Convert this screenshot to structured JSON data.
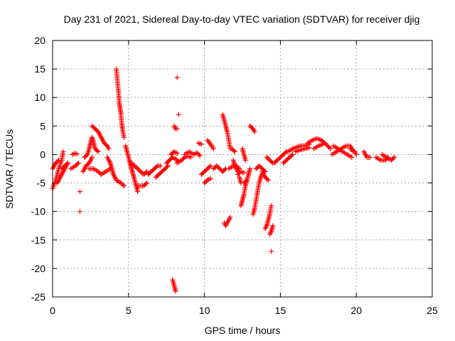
{
  "chart_data": {
    "type": "scatter",
    "title": "Day 231 of 2021, Sidereal Day-to-day VTEC variation (SDTVAR) for receiver djig",
    "xlabel": "GPS time / hours",
    "ylabel": "SDTVAR / TECUs",
    "xlim": [
      0,
      25
    ],
    "ylim": [
      -25,
      20
    ],
    "xticks": [
      0,
      5,
      10,
      15,
      20,
      25
    ],
    "yticks": [
      -25,
      -20,
      -15,
      -10,
      -5,
      0,
      5,
      10,
      15,
      20
    ],
    "grid": true,
    "marker": "plus",
    "color": "#ff0000",
    "arcs": [
      [
        [
          0.0,
          -6.0
        ],
        [
          0.2,
          -4.5
        ],
        [
          0.4,
          -2.5
        ],
        [
          0.6,
          -1.0
        ],
        [
          0.7,
          0.5
        ]
      ],
      [
        [
          0.0,
          -2.5
        ],
        [
          0.2,
          -1.5
        ],
        [
          0.4,
          -1.0
        ]
      ],
      [
        [
          0.3,
          -5.0
        ],
        [
          0.5,
          -4.0
        ],
        [
          0.7,
          -3.0
        ],
        [
          0.9,
          -2.0
        ],
        [
          1.0,
          -1.5
        ]
      ],
      [
        [
          0.6,
          -2.5
        ],
        [
          0.8,
          -2.0
        ],
        [
          1.0,
          -1.5
        ]
      ],
      [
        [
          1.2,
          -2.5
        ],
        [
          1.5,
          -2.0
        ],
        [
          1.7,
          -1.5
        ]
      ],
      [
        [
          1.3,
          0.0
        ],
        [
          1.5,
          0.2
        ],
        [
          1.6,
          0.1
        ]
      ],
      [
        [
          1.8,
          -6.5
        ]
      ],
      [
        [
          1.8,
          -10.0
        ]
      ],
      [
        [
          2.0,
          -3.0
        ],
        [
          2.2,
          -2.0
        ],
        [
          2.4,
          -1.5
        ],
        [
          2.6,
          -0.5
        ]
      ],
      [
        [
          2.1,
          -0.5
        ],
        [
          2.3,
          0.0
        ],
        [
          2.4,
          1.0
        ],
        [
          2.5,
          2.0
        ],
        [
          2.6,
          3.0
        ],
        [
          2.7,
          2.0
        ],
        [
          2.8,
          1.0
        ],
        [
          3.0,
          0.5
        ]
      ],
      [
        [
          2.4,
          -2.5
        ],
        [
          2.7,
          -2.5
        ],
        [
          3.0,
          -3.0
        ],
        [
          3.2,
          -3.5
        ],
        [
          3.5,
          -3.0
        ],
        [
          3.8,
          -2.5
        ]
      ],
      [
        [
          2.6,
          5.0
        ],
        [
          2.8,
          4.5
        ],
        [
          3.0,
          4.0
        ],
        [
          3.2,
          3.0
        ],
        [
          3.4,
          2.0
        ],
        [
          3.6,
          1.5
        ],
        [
          3.7,
          1.0
        ]
      ],
      [
        [
          3.6,
          -0.5
        ],
        [
          3.8,
          -1.5
        ],
        [
          3.9,
          -2.5
        ],
        [
          4.0,
          -3.5
        ],
        [
          4.2,
          -4.5
        ],
        [
          4.5,
          -5.0
        ],
        [
          4.7,
          -5.5
        ]
      ],
      [
        [
          4.2,
          15.0
        ],
        [
          4.25,
          13.5
        ],
        [
          4.3,
          12.0
        ],
        [
          4.35,
          10.5
        ],
        [
          4.4,
          9.0
        ],
        [
          4.45,
          8.0
        ],
        [
          4.5,
          7.0
        ],
        [
          4.55,
          5.5
        ],
        [
          4.6,
          4.5
        ],
        [
          4.7,
          3.0
        ]
      ],
      [
        [
          4.8,
          1.5
        ],
        [
          4.9,
          0.5
        ],
        [
          5.0,
          -0.5
        ],
        [
          5.1,
          -1.5
        ],
        [
          5.2,
          -2.5
        ],
        [
          5.3,
          -3.5
        ],
        [
          5.4,
          -4.5
        ],
        [
          5.5,
          -5.5
        ],
        [
          5.6,
          -6.5
        ]
      ],
      [
        [
          5.2,
          -1.5
        ],
        [
          5.4,
          -2.0
        ],
        [
          5.6,
          -2.5
        ],
        [
          5.8,
          -3.0
        ],
        [
          6.0,
          -3.5
        ],
        [
          6.2,
          -3.0
        ]
      ],
      [
        [
          5.6,
          -5.5
        ],
        [
          5.8,
          -5.5
        ],
        [
          6.0,
          -5.5
        ],
        [
          6.2,
          -5.0
        ]
      ],
      [
        [
          6.3,
          -3.5
        ],
        [
          6.5,
          -3.0
        ],
        [
          6.7,
          -2.5
        ],
        [
          6.9,
          -2.0
        ],
        [
          7.1,
          -2.0
        ]
      ],
      [
        [
          6.8,
          -4.0
        ],
        [
          7.0,
          -3.5
        ],
        [
          7.2,
          -3.0
        ],
        [
          7.4,
          -2.5
        ],
        [
          7.6,
          -2.0
        ]
      ],
      [
        [
          7.5,
          -1.5
        ],
        [
          7.7,
          -1.0
        ],
        [
          7.9,
          -0.5
        ],
        [
          8.1,
          -0.8
        ],
        [
          8.3,
          -1.3
        ]
      ],
      [
        [
          7.8,
          0.0
        ],
        [
          8.0,
          0.5
        ],
        [
          8.2,
          0.2
        ]
      ],
      [
        [
          7.9,
          -22.0
        ],
        [
          8.0,
          -23.0
        ],
        [
          8.1,
          -24.0
        ]
      ],
      [
        [
          8.0,
          5.0
        ],
        [
          8.1,
          4.5
        ],
        [
          8.2,
          4.5
        ]
      ],
      [
        [
          8.2,
          13.5
        ]
      ],
      [
        [
          8.3,
          7.0
        ]
      ],
      [
        [
          8.2,
          -1.5
        ],
        [
          8.5,
          -1.0
        ],
        [
          8.7,
          -0.5
        ],
        [
          8.9,
          -0.3
        ],
        [
          9.1,
          -0.5
        ]
      ],
      [
        [
          8.7,
          0.0
        ],
        [
          9.0,
          0.5
        ],
        [
          9.3,
          0.0
        ],
        [
          9.5,
          0.3
        ],
        [
          9.7,
          -0.2
        ]
      ],
      [
        [
          9.6,
          2.0
        ],
        [
          9.8,
          1.8
        ]
      ],
      [
        [
          9.8,
          -3.5
        ],
        [
          10.0,
          -3.0
        ],
        [
          10.2,
          -2.5
        ],
        [
          10.4,
          -2.0
        ]
      ],
      [
        [
          10.0,
          -5.0
        ],
        [
          10.2,
          -4.5
        ],
        [
          10.4,
          -4.2
        ]
      ],
      [
        [
          10.2,
          2.5
        ],
        [
          10.4,
          1.8
        ],
        [
          10.6,
          1.0
        ]
      ],
      [
        [
          10.6,
          -2.5
        ],
        [
          10.8,
          -2.0
        ],
        [
          11.0,
          -2.5
        ],
        [
          11.2,
          -3.0
        ],
        [
          11.4,
          -2.5
        ]
      ],
      [
        [
          11.2,
          7.0
        ],
        [
          11.3,
          6.0
        ],
        [
          11.4,
          5.0
        ],
        [
          11.5,
          4.0
        ],
        [
          11.6,
          2.5
        ],
        [
          11.7,
          1.0
        ]
      ],
      [
        [
          11.3,
          -12.0
        ],
        [
          11.4,
          -12.5
        ],
        [
          11.5,
          -12.0
        ],
        [
          11.6,
          -11.5
        ],
        [
          11.7,
          -11.0
        ]
      ],
      [
        [
          11.6,
          -2.5
        ],
        [
          11.9,
          -2.0
        ],
        [
          12.1,
          -2.0
        ],
        [
          12.3,
          -2.5
        ]
      ],
      [
        [
          11.9,
          -1.0
        ],
        [
          12.0,
          -2.0
        ],
        [
          12.2,
          -3.0
        ]
      ],
      [
        [
          11.8,
          1.0
        ],
        [
          12.0,
          0.5
        ]
      ],
      [
        [
          12.2,
          -3.5
        ],
        [
          12.4,
          -3.0
        ],
        [
          12.6,
          -3.2
        ]
      ],
      [
        [
          12.3,
          -4.0
        ],
        [
          12.4,
          -5.0
        ]
      ],
      [
        [
          12.4,
          -9.0
        ],
        [
          12.5,
          -8.0
        ],
        [
          12.6,
          -7.0
        ],
        [
          12.7,
          -5.5
        ],
        [
          12.8,
          -4.5
        ],
        [
          12.9,
          -3.5
        ],
        [
          13.0,
          -2.5
        ]
      ],
      [
        [
          12.5,
          1.0
        ],
        [
          12.6,
          0.0
        ],
        [
          12.7,
          -1.0
        ]
      ],
      [
        [
          12.6,
          -5.0
        ],
        [
          12.8,
          -4.5
        ]
      ],
      [
        [
          13.0,
          5.0
        ],
        [
          13.2,
          4.5
        ],
        [
          13.3,
          4.0
        ]
      ],
      [
        [
          13.2,
          -10.5
        ],
        [
          13.3,
          -9.5
        ],
        [
          13.4,
          -8.0
        ],
        [
          13.5,
          -6.5
        ],
        [
          13.6,
          -5.0
        ],
        [
          13.7,
          -4.0
        ],
        [
          13.9,
          -3.0
        ]
      ],
      [
        [
          13.4,
          -2.5
        ],
        [
          13.6,
          -2.0
        ],
        [
          13.8,
          -2.5
        ],
        [
          14.0,
          -3.0
        ]
      ],
      [
        [
          13.8,
          -3.0
        ],
        [
          14.0,
          -4.0
        ],
        [
          14.2,
          -4.5
        ]
      ],
      [
        [
          14.0,
          -13.0
        ],
        [
          14.1,
          -12.5
        ],
        [
          14.2,
          -11.5
        ],
        [
          14.3,
          -10.5
        ],
        [
          14.4,
          -9.0
        ]
      ],
      [
        [
          14.3,
          -14.0
        ],
        [
          14.4,
          -13.5
        ],
        [
          14.5,
          -12.5
        ]
      ],
      [
        [
          14.4,
          -17.0
        ]
      ],
      [
        [
          14.1,
          -0.5
        ],
        [
          14.3,
          -1.0
        ],
        [
          14.5,
          -1.5
        ]
      ],
      [
        [
          14.6,
          -1.5
        ],
        [
          14.8,
          -1.0
        ],
        [
          15.0,
          -0.5
        ],
        [
          15.2,
          0.0
        ],
        [
          15.4,
          0.5
        ]
      ],
      [
        [
          15.2,
          -1.5
        ],
        [
          15.4,
          -1.0
        ],
        [
          15.6,
          -0.5
        ],
        [
          15.8,
          0.0
        ]
      ],
      [
        [
          15.5,
          0.5
        ],
        [
          15.8,
          1.0
        ],
        [
          16.0,
          1.2
        ],
        [
          16.3,
          1.5
        ],
        [
          16.6,
          1.5
        ],
        [
          16.9,
          1.8
        ]
      ],
      [
        [
          16.0,
          0.5
        ],
        [
          16.3,
          0.8
        ],
        [
          16.6,
          1.0
        ],
        [
          16.9,
          1.2
        ]
      ],
      [
        [
          16.8,
          2.0
        ],
        [
          17.1,
          2.5
        ],
        [
          17.4,
          2.8
        ],
        [
          17.7,
          2.5
        ],
        [
          18.0,
          1.8
        ],
        [
          18.3,
          1.0
        ]
      ],
      [
        [
          17.2,
          1.0
        ],
        [
          17.5,
          1.5
        ],
        [
          17.8,
          1.8
        ]
      ],
      [
        [
          18.4,
          0.0
        ],
        [
          18.7,
          0.5
        ],
        [
          19.0,
          1.0
        ],
        [
          19.3,
          1.5
        ],
        [
          19.6,
          1.5
        ],
        [
          19.8,
          0.5
        ]
      ],
      [
        [
          18.5,
          1.5
        ],
        [
          18.8,
          1.0
        ],
        [
          19.1,
          0.5
        ],
        [
          19.4,
          0.0
        ],
        [
          19.7,
          -0.5
        ]
      ],
      [
        [
          19.6,
          1.0
        ],
        [
          19.9,
          0.5
        ],
        [
          20.0,
          0.0
        ]
      ],
      [
        [
          20.5,
          0.5
        ],
        [
          20.7,
          -0.5
        ],
        [
          20.9,
          -0.5
        ]
      ],
      [
        [
          21.3,
          -0.5
        ],
        [
          21.6,
          -1.0
        ],
        [
          21.9,
          -1.0
        ],
        [
          22.1,
          -0.5
        ]
      ],
      [
        [
          21.7,
          0.0
        ],
        [
          22.0,
          -0.5
        ],
        [
          22.3,
          -1.0
        ],
        [
          22.5,
          -0.5
        ]
      ]
    ]
  }
}
